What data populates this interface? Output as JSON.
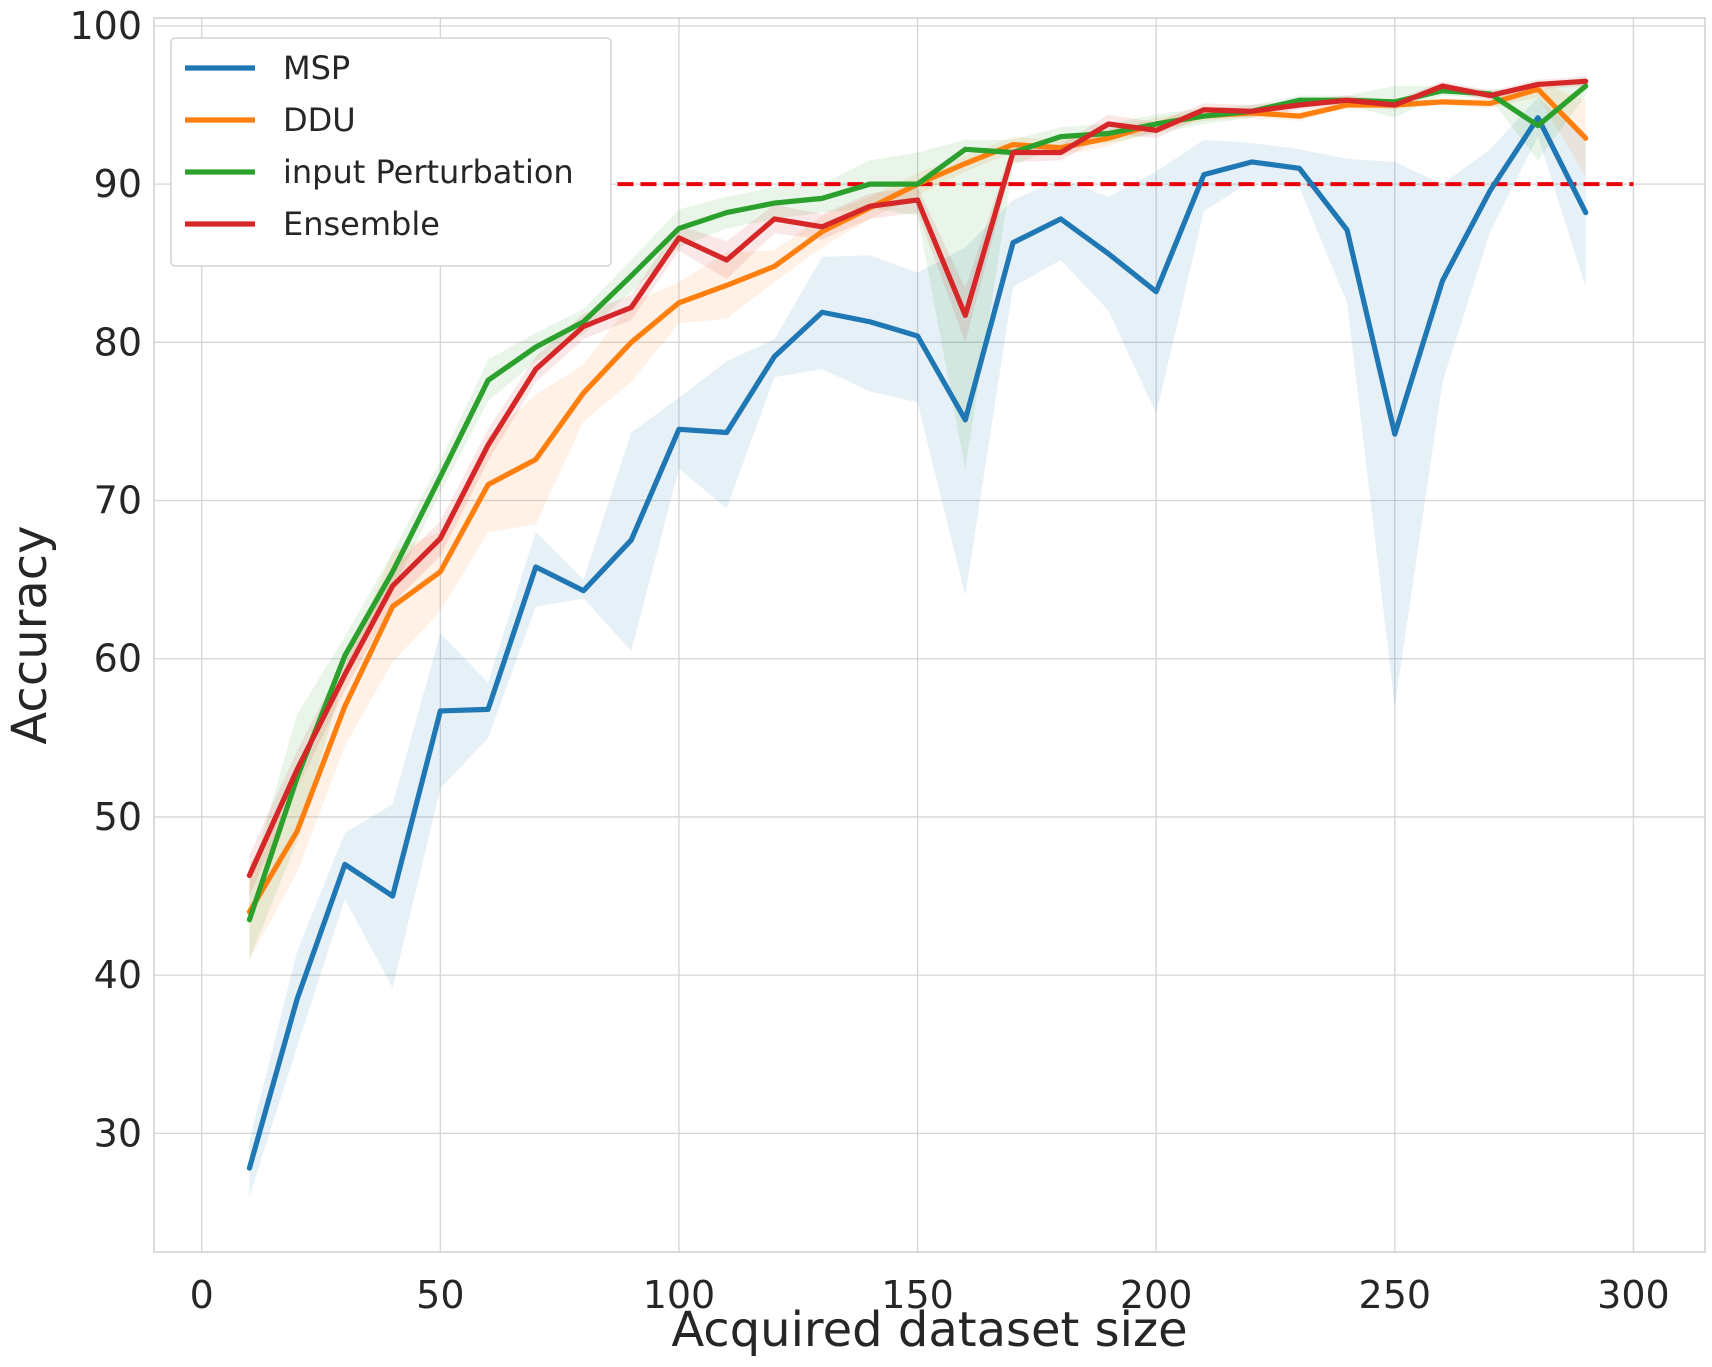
{
  "chart_data": {
    "type": "line",
    "xlabel": "Acquired dataset size",
    "ylabel": "Accuracy",
    "xlim": [
      -10,
      315
    ],
    "ylim": [
      22.5,
      100.5
    ],
    "xticks": [
      "0",
      "50",
      "100",
      "150",
      "200",
      "250",
      "300"
    ],
    "yticks": [
      "30",
      "40",
      "50",
      "60",
      "70",
      "80",
      "90",
      "100"
    ],
    "grid": true,
    "legend_position": "top-left",
    "x": [
      10,
      20,
      30,
      40,
      50,
      60,
      70,
      80,
      90,
      100,
      110,
      120,
      130,
      140,
      150,
      160,
      170,
      180,
      190,
      200,
      210,
      220,
      230,
      240,
      250,
      260,
      270,
      280,
      290
    ],
    "reference_line": {
      "y": 90,
      "x_range": [
        10,
        300
      ],
      "color": "#e8000b",
      "style": "dashed"
    },
    "series": [
      {
        "name": "MSP",
        "color": "#1f77b4",
        "values": [
          27.8,
          38.5,
          47.0,
          45.0,
          56.7,
          56.8,
          65.8,
          64.3,
          67.5,
          74.5,
          74.3,
          79.1,
          81.9,
          81.3,
          80.4,
          75.1,
          86.3,
          87.8,
          85.6,
          83.2,
          90.6,
          91.4,
          91.0,
          87.1,
          74.2,
          83.9,
          89.6,
          94.2,
          88.2
        ],
        "lower": [
          26.0,
          35.5,
          44.8,
          39.2,
          51.8,
          55.0,
          63.3,
          63.8,
          60.5,
          72.0,
          69.5,
          77.8,
          78.3,
          76.9,
          76.2,
          64.0,
          83.5,
          85.2,
          82.0,
          75.5,
          88.3,
          90.2,
          89.8,
          82.5,
          57.0,
          77.5,
          87.0,
          93.0,
          83.5
        ],
        "upper": [
          29.5,
          41.5,
          49.0,
          50.8,
          61.6,
          58.5,
          68.0,
          65.0,
          74.3,
          76.5,
          78.8,
          80.2,
          85.4,
          85.5,
          84.4,
          86.0,
          89.0,
          90.3,
          89.2,
          90.8,
          92.8,
          92.6,
          92.2,
          91.6,
          91.4,
          90.0,
          92.2,
          95.5,
          92.8
        ]
      },
      {
        "name": "DDU",
        "color": "#ff7f0e",
        "values": [
          44.0,
          49.1,
          57.0,
          63.3,
          65.5,
          71.0,
          72.6,
          76.8,
          80.0,
          82.5,
          83.6,
          84.8,
          87.0,
          88.5,
          90.0,
          91.3,
          92.5,
          92.3,
          92.9,
          93.8,
          94.3,
          94.5,
          94.3,
          95.0,
          95.0,
          95.2,
          95.1,
          96.0,
          92.9
        ],
        "lower": [
          41.0,
          46.5,
          54.5,
          59.8,
          63.0,
          68.0,
          68.5,
          75.0,
          77.5,
          81.2,
          81.5,
          83.8,
          86.0,
          87.8,
          89.3,
          90.8,
          92.0,
          91.8,
          92.4,
          93.4,
          94.0,
          94.2,
          94.0,
          94.8,
          94.8,
          95.0,
          94.8,
          95.5,
          90.5
        ],
        "upper": [
          47.0,
          51.8,
          59.5,
          66.8,
          68.0,
          74.0,
          76.7,
          78.6,
          82.5,
          83.8,
          85.7,
          85.8,
          88.0,
          89.2,
          90.7,
          91.8,
          93.0,
          92.8,
          93.4,
          94.2,
          94.6,
          94.8,
          94.6,
          95.2,
          95.2,
          95.4,
          95.4,
          96.5,
          95.3
        ]
      },
      {
        "name": "input Perturbation",
        "color": "#2ca02c",
        "values": [
          43.5,
          52.5,
          60.2,
          65.5,
          71.5,
          77.6,
          79.7,
          81.3,
          84.2,
          87.2,
          88.2,
          88.8,
          89.1,
          90.0,
          90.0,
          92.2,
          92.0,
          93.0,
          93.2,
          93.8,
          94.3,
          94.6,
          95.3,
          95.3,
          95.2,
          95.9,
          95.7,
          93.7,
          96.2
        ],
        "lower": [
          41.0,
          48.5,
          59.0,
          64.3,
          70.5,
          76.3,
          78.8,
          80.5,
          83.2,
          86.0,
          87.2,
          87.8,
          88.2,
          88.5,
          88.0,
          72.0,
          91.2,
          92.4,
          92.6,
          93.2,
          93.8,
          94.2,
          95.0,
          95.0,
          94.2,
          95.6,
          95.4,
          91.5,
          95.6
        ],
        "upper": [
          46.0,
          56.5,
          61.4,
          66.7,
          72.5,
          78.9,
          80.6,
          82.1,
          85.2,
          88.4,
          89.2,
          89.8,
          90.0,
          91.5,
          92.0,
          92.8,
          92.8,
          93.6,
          93.8,
          94.4,
          94.8,
          95.0,
          95.6,
          95.6,
          96.2,
          96.2,
          96.0,
          95.9,
          96.8
        ]
      },
      {
        "name": "Ensemble",
        "color": "#d62728",
        "values": [
          46.3,
          53.0,
          59.0,
          64.6,
          67.6,
          73.5,
          78.3,
          81.0,
          82.2,
          86.6,
          85.2,
          87.8,
          87.3,
          88.6,
          89.0,
          81.7,
          92.0,
          92.0,
          93.8,
          93.4,
          94.7,
          94.6,
          95.0,
          95.3,
          95.0,
          96.2,
          95.6,
          96.3,
          96.5
        ],
        "lower": [
          45.0,
          51.8,
          58.0,
          63.5,
          66.5,
          72.5,
          77.5,
          80.2,
          81.4,
          85.8,
          84.0,
          86.9,
          86.5,
          87.8,
          88.2,
          80.0,
          91.4,
          91.5,
          93.2,
          92.9,
          94.3,
          94.2,
          94.7,
          95.0,
          94.7,
          95.9,
          95.3,
          96.0,
          96.2
        ],
        "upper": [
          47.6,
          54.2,
          60.0,
          65.7,
          68.7,
          74.5,
          79.1,
          81.8,
          83.0,
          87.4,
          86.4,
          88.7,
          88.1,
          89.4,
          89.8,
          83.4,
          92.6,
          92.5,
          94.4,
          93.9,
          95.1,
          95.0,
          95.3,
          95.6,
          95.3,
          96.5,
          95.9,
          96.6,
          96.8
        ]
      }
    ]
  }
}
